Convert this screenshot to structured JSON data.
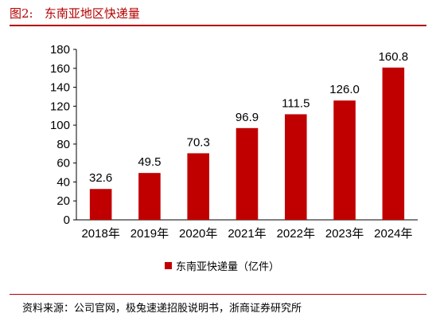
{
  "figure": {
    "title": "图2:   东南亚地区快递量",
    "source": "资料来源：公司官网，极兔速递招股说明书，浙商证券研究所"
  },
  "chart_data": {
    "type": "bar",
    "categories": [
      "2018年",
      "2019年",
      "2020年",
      "2021年",
      "2022年",
      "2023年",
      "2024年"
    ],
    "series": [
      {
        "name": "东南亚快递量（亿件）",
        "values": [
          32.6,
          49.5,
          70.3,
          96.9,
          111.5,
          126.0,
          160.8
        ],
        "color": "#c00000"
      }
    ],
    "data_labels": [
      "32.6",
      "49.5",
      "70.3",
      "96.9",
      "111.5",
      "126.0",
      "160.8"
    ],
    "yticks": [
      "0",
      "20",
      "40",
      "60",
      "80",
      "100",
      "120",
      "140",
      "160",
      "180"
    ],
    "ylim": [
      0,
      180
    ],
    "grid": false,
    "legend_position": "bottom"
  }
}
